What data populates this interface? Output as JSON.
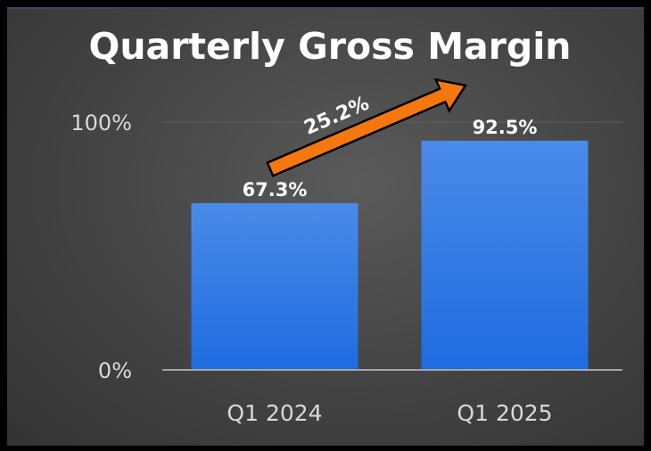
{
  "chart_data": {
    "type": "bar",
    "title": "Quarterly Gross Margin",
    "categories": [
      "Q1 2024",
      "Q1 2025"
    ],
    "values": [
      67.3,
      92.5
    ],
    "value_labels": [
      "67.3%",
      "92.5%"
    ],
    "ylim": [
      0,
      100
    ],
    "y_ticks": [
      0,
      100
    ],
    "y_tick_labels": [
      "0%",
      "100%"
    ],
    "xlabel": "",
    "ylabel": "",
    "grid": true,
    "legend": "none",
    "annotation": {
      "type": "arrow",
      "label": "25.2%",
      "from_category": "Q1 2024",
      "to_category": "Q1 2025"
    }
  },
  "colors": {
    "background": "#474747",
    "bar_top": "#4a8be8",
    "bar_bottom": "#1f6be0",
    "arrow_fill": "#f5780f",
    "arrow_stroke": "#000000",
    "grid": "#5e5e5e",
    "axis": "#a6a6a6",
    "text": "#ffffff",
    "tick_text": "#d9d9d9"
  }
}
